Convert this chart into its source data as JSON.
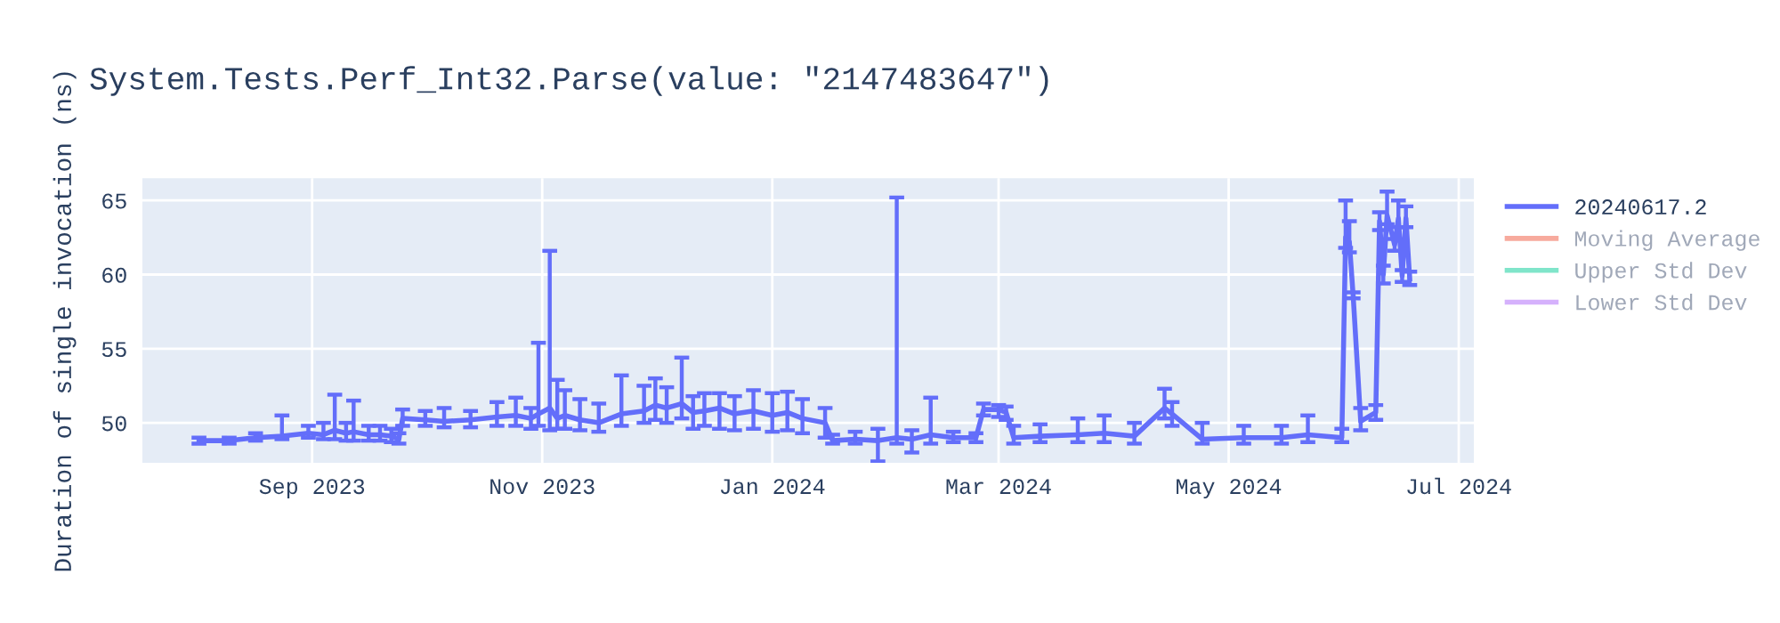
{
  "chart_data": {
    "type": "line",
    "title": "System.Tests.Perf_Int32.Parse(value: \"2147483647\")",
    "ylabel": "Duration of single invocation (ns)",
    "xlim": [
      "2023-07-18",
      "2024-07-05"
    ],
    "xticks": [
      {
        "value": "2023-09-01",
        "label": "Sep 2023"
      },
      {
        "value": "2023-11-01",
        "label": "Nov 2023"
      },
      {
        "value": "2024-01-01",
        "label": "Jan 2024"
      },
      {
        "value": "2024-03-01",
        "label": "Mar 2024"
      },
      {
        "value": "2024-05-01",
        "label": "May 2024"
      },
      {
        "value": "2024-07-01",
        "label": "Jul 2024"
      }
    ],
    "ylim": [
      47.3,
      66.5
    ],
    "yticks": [
      50,
      55,
      60,
      65
    ],
    "grid": true,
    "legend": "top right",
    "series": [
      {
        "name": "20240617.2",
        "color": "#636efa",
        "x": [
          "2023-08-02",
          "2023-08-10",
          "2023-08-17",
          "2023-08-24",
          "2023-08-31",
          "2023-09-04",
          "2023-09-07",
          "2023-09-10",
          "2023-09-12",
          "2023-09-16",
          "2023-09-19",
          "2023-09-22",
          "2023-09-24",
          "2023-09-25",
          "2023-10-01",
          "2023-10-06",
          "2023-10-13",
          "2023-10-20",
          "2023-10-25",
          "2023-10-29",
          "2023-10-31",
          "2023-11-03",
          "2023-11-05",
          "2023-11-07",
          "2023-11-11",
          "2023-11-16",
          "2023-11-22",
          "2023-11-28",
          "2023-12-01",
          "2023-12-04",
          "2023-12-08",
          "2023-12-11",
          "2023-12-14",
          "2023-12-18",
          "2023-12-22",
          "2023-12-27",
          "2024-01-01",
          "2024-01-05",
          "2024-01-09",
          "2024-01-15",
          "2024-01-17",
          "2024-01-23",
          "2024-01-29",
          "2024-02-03",
          "2024-02-07",
          "2024-02-12",
          "2024-02-18",
          "2024-02-24",
          "2024-02-26",
          "2024-03-01",
          "2024-03-03",
          "2024-03-05",
          "2024-03-12",
          "2024-03-22",
          "2024-03-29",
          "2024-04-06",
          "2024-04-14",
          "2024-04-16",
          "2024-04-24",
          "2024-05-05",
          "2024-05-15",
          "2024-05-22",
          "2024-05-31",
          "2024-06-01",
          "2024-06-02",
          "2024-06-03",
          "2024-06-05",
          "2024-06-09",
          "2024-06-10",
          "2024-06-11",
          "2024-06-12",
          "2024-06-14",
          "2024-06-15",
          "2024-06-16",
          "2024-06-17",
          "2024-06-18"
        ],
        "values": [
          48.8,
          48.8,
          49.0,
          49.1,
          49.3,
          49.2,
          49.5,
          49.3,
          49.4,
          49.2,
          49.2,
          49.1,
          48.9,
          50.3,
          50.2,
          50.1,
          50.2,
          50.4,
          50.5,
          50.3,
          50.6,
          51.0,
          50.3,
          50.5,
          50.2,
          50.0,
          50.6,
          50.8,
          51.2,
          51.0,
          51.3,
          50.7,
          50.8,
          51.0,
          50.6,
          50.8,
          50.5,
          50.7,
          50.3,
          50.0,
          48.8,
          48.9,
          48.8,
          49.0,
          48.9,
          49.2,
          49.0,
          49.0,
          50.9,
          50.9,
          50.7,
          49.0,
          49.1,
          49.2,
          49.3,
          49.1,
          51.0,
          50.6,
          48.9,
          49.0,
          49.0,
          49.2,
          49.0,
          62.5,
          62.2,
          58.6,
          50.1,
          50.7,
          63.6,
          60.0,
          64.0,
          62.0,
          63.8,
          59.9,
          63.8,
          59.7
        ],
        "errors": [
          [
            48.6,
            49.0
          ],
          [
            48.6,
            49.0
          ],
          [
            48.8,
            49.3
          ],
          [
            48.9,
            50.5
          ],
          [
            49.0,
            49.8
          ],
          [
            48.9,
            50.0
          ],
          [
            48.9,
            51.9
          ],
          [
            48.8,
            50.0
          ],
          [
            48.8,
            51.5
          ],
          [
            48.8,
            49.8
          ],
          [
            48.8,
            49.8
          ],
          [
            48.7,
            49.6
          ],
          [
            48.6,
            49.3
          ],
          [
            49.8,
            50.9
          ],
          [
            49.8,
            50.8
          ],
          [
            49.7,
            51.0
          ],
          [
            49.7,
            50.8
          ],
          [
            49.8,
            51.4
          ],
          [
            49.8,
            51.7
          ],
          [
            49.6,
            51.0
          ],
          [
            49.8,
            55.4
          ],
          [
            49.5,
            61.6
          ],
          [
            49.6,
            52.9
          ],
          [
            49.6,
            52.2
          ],
          [
            49.5,
            51.6
          ],
          [
            49.4,
            51.3
          ],
          [
            49.8,
            53.2
          ],
          [
            50.0,
            52.5
          ],
          [
            50.2,
            53.0
          ],
          [
            50.0,
            52.4
          ],
          [
            50.3,
            54.4
          ],
          [
            49.6,
            51.8
          ],
          [
            49.8,
            52.0
          ],
          [
            49.6,
            52.0
          ],
          [
            49.5,
            51.8
          ],
          [
            49.6,
            52.2
          ],
          [
            49.4,
            52.0
          ],
          [
            49.5,
            52.1
          ],
          [
            49.3,
            51.6
          ],
          [
            49.0,
            51.0
          ],
          [
            48.6,
            49.2
          ],
          [
            48.6,
            49.4
          ],
          [
            47.4,
            49.6
          ],
          [
            48.6,
            65.2
          ],
          [
            48.0,
            49.5
          ],
          [
            48.6,
            51.7
          ],
          [
            48.7,
            49.4
          ],
          [
            48.7,
            49.3
          ],
          [
            50.5,
            51.3
          ],
          [
            50.4,
            51.2
          ],
          [
            50.2,
            51.1
          ],
          [
            48.6,
            49.8
          ],
          [
            48.7,
            49.9
          ],
          [
            48.7,
            50.3
          ],
          [
            48.7,
            50.5
          ],
          [
            48.6,
            50.0
          ],
          [
            50.3,
            52.3
          ],
          [
            49.8,
            51.4
          ],
          [
            48.6,
            50.0
          ],
          [
            48.6,
            49.8
          ],
          [
            48.6,
            49.8
          ],
          [
            48.7,
            50.5
          ],
          [
            48.7,
            49.6
          ],
          [
            61.8,
            65.0
          ],
          [
            61.5,
            63.6
          ],
          [
            58.4,
            58.8
          ],
          [
            49.5,
            51.0
          ],
          [
            50.2,
            51.2
          ],
          [
            63.0,
            64.2
          ],
          [
            59.4,
            60.6
          ],
          [
            63.4,
            65.6
          ],
          [
            61.6,
            62.4
          ],
          [
            63.2,
            65.0
          ],
          [
            59.5,
            60.3
          ],
          [
            63.2,
            64.6
          ],
          [
            59.3,
            60.2
          ]
        ]
      },
      {
        "name": "Moving Average",
        "color": "#f7aa9d"
      },
      {
        "name": "Upper Std Dev",
        "color": "#80e5ca"
      },
      {
        "name": "Lower Std Dev",
        "color": "#d5b1fc"
      }
    ]
  }
}
